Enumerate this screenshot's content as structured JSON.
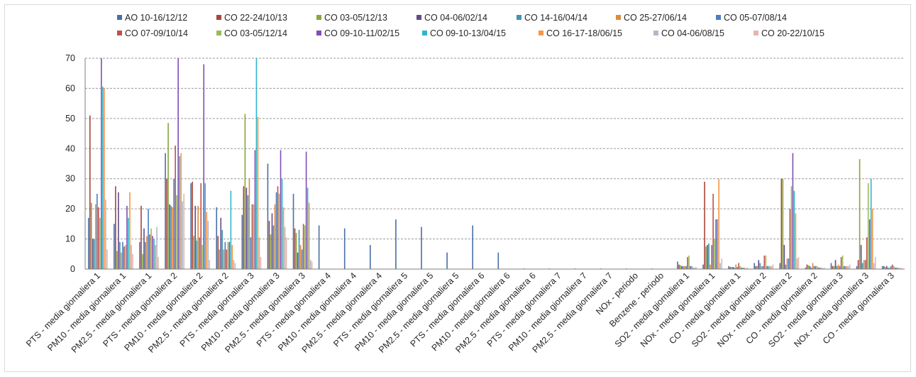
{
  "chart_data": {
    "type": "bar",
    "title": "",
    "xlabel": "",
    "ylabel": "",
    "ylim": [
      0,
      70
    ],
    "yticks": [
      0,
      10,
      20,
      30,
      40,
      50,
      60,
      70
    ],
    "grid": true,
    "legend_position": "top",
    "categories": [
      "PTS - media giornaliera 1",
      "PM10 - media giornaliera 1",
      "PM2.5 - media giornaliera 1",
      "PTS - media giornaliera 2",
      "PM10 - media giornaliera 2",
      "PM2.5 - media giornaliera 2",
      "PTS - media giornaliera 3",
      "PM10 - media giornaliera 3",
      "PM2.5 - media giornaliera 3",
      "PTS - media giornaliera 4",
      "PM10 - media giornaliera 4",
      "PM2.5 - media giornaliera 4",
      "PTS - media giornaliera 5",
      "PM10 - media giornaliera 5",
      "PM2.5 - media giornaliera 5",
      "PTS - media giornaliera 6",
      "PM10 - media giornaliera 6",
      "PM2.5 - media giornaliera 6",
      "PTS - media giornaliera 7",
      "PM10 - media giornaliera 7",
      "PM2.5 - media giornaliera 7",
      "NOx - periodo",
      "Benzene - periodo",
      "SO2 - media giornaliera 1",
      "NOx - media giornaliera 1",
      "CO - media giornaliera 1",
      "SO2 - media giornaliera 2",
      "NOx - media giornaliera 2",
      "CO - media giornaliera 2",
      "SO2 - media giornaliera 3",
      "NOx - media giornaliera 3",
      "CO - media giornaliera 3"
    ],
    "series": [
      {
        "name": "AO 10-16/12/12",
        "color": "#4a6fa5",
        "values": [
          17,
          15,
          9,
          38.5,
          28.5,
          20.5,
          18,
          35,
          25,
          14.5,
          13.5,
          8,
          16.5,
          14,
          5.5,
          14.5,
          5.5,
          0.2,
          0.2,
          0.2,
          0.2,
          0.2,
          0.2,
          2.5,
          1.5,
          1,
          2,
          2,
          0.5,
          2,
          1,
          1
        ]
      },
      {
        "name": "CO 22-24/10/13",
        "color": "#a8463a",
        "values": [
          51,
          27.5,
          21,
          30,
          29,
          11,
          27.5,
          16,
          13.5,
          0,
          0,
          0,
          0,
          0,
          0,
          0,
          0,
          0,
          0,
          0,
          0,
          0,
          0,
          1.5,
          29,
          0.7,
          1,
          30,
          1.5,
          1,
          3,
          1
        ]
      },
      {
        "name": "CO 03-05/12/13",
        "color": "#8ba540",
        "values": [
          22,
          6,
          5,
          48.5,
          11,
          6.5,
          51.5,
          11.5,
          12,
          0,
          0,
          0,
          0,
          0,
          0,
          0,
          0,
          0,
          0,
          0,
          0,
          0,
          0,
          1.3,
          7.5,
          0.7,
          1,
          30,
          1.3,
          1,
          36.5,
          0.7
        ]
      },
      {
        "name": "CO 04-06/02/14",
        "color": "#5f4d8c",
        "values": [
          10,
          25.5,
          13.5,
          21.5,
          21,
          17,
          27,
          18.5,
          5.5,
          0,
          0,
          0,
          0,
          0,
          0,
          0,
          0,
          0,
          0,
          0,
          0,
          0,
          0,
          1,
          8,
          0.7,
          3,
          8,
          1,
          3,
          8,
          1
        ]
      },
      {
        "name": "CO 14-16/04/14",
        "color": "#3d96b0",
        "values": [
          10,
          9,
          9,
          21,
          9.5,
          13,
          24.5,
          14.5,
          13,
          0,
          0,
          0,
          0,
          0,
          0,
          0,
          0,
          0,
          0,
          0,
          0,
          0,
          0,
          1,
          8.5,
          0.5,
          2,
          1.5,
          0.5,
          1,
          2,
          0.5
        ]
      },
      {
        "name": "CO 25-27/06/14",
        "color": "#e08a3c",
        "values": [
          21.5,
          5.5,
          11,
          20.5,
          21,
          6.5,
          30,
          21.5,
          8,
          0,
          0,
          0,
          0,
          0,
          0,
          0,
          0,
          0,
          0,
          0,
          0,
          0,
          0,
          1,
          1.5,
          1.5,
          1,
          3.5,
          2,
          1.5,
          3,
          0.5
        ]
      },
      {
        "name": "CO 05-07/08/14",
        "color": "#4a7fc1",
        "values": [
          25,
          9,
          20,
          30,
          10.5,
          9,
          10.5,
          25.5,
          6.5,
          0,
          0,
          0,
          0,
          0,
          0,
          0,
          0,
          0,
          0,
          0,
          0,
          0,
          0,
          1,
          8,
          0.7,
          1,
          3.5,
          1,
          1,
          3,
          1
        ]
      },
      {
        "name": "CO 07-09/10/14",
        "color": "#c0504d",
        "values": [
          20.5,
          7.5,
          11.5,
          41,
          28.5,
          6.5,
          21.5,
          27.5,
          15,
          0,
          0,
          0,
          0,
          0,
          0,
          0,
          0,
          0,
          0,
          0,
          0,
          0,
          0,
          4,
          25,
          2,
          4.5,
          20,
          1,
          4,
          10.5,
          1.5
        ]
      },
      {
        "name": "CO 03-05/12/14",
        "color": "#9bbb59",
        "values": [
          17,
          8,
          13.5,
          24.5,
          8,
          9,
          21.5,
          25,
          14.5,
          0,
          0,
          0,
          0,
          0,
          0,
          0,
          0,
          0,
          0,
          0,
          0,
          0,
          0,
          4.5,
          10,
          1,
          4.5,
          27.5,
          1,
          4.5,
          28.5,
          1
        ]
      },
      {
        "name": "CO 09-10-11/02/15",
        "color": "#7f4fb5",
        "values": [
          70,
          21,
          11,
          70,
          68,
          9,
          39.5,
          39.5,
          39,
          0,
          0,
          0,
          0,
          0,
          0,
          0,
          0,
          0,
          0,
          0,
          0,
          0,
          0,
          1,
          16.5,
          0.5,
          1,
          38.5,
          0.5,
          1,
          16.5,
          0.5
        ]
      },
      {
        "name": "CO 09-10-13/04/15",
        "color": "#2fb6cc",
        "values": [
          60.5,
          17,
          10,
          37.5,
          28.5,
          26,
          70,
          30,
          27,
          0,
          0,
          0,
          0,
          0,
          0,
          0,
          0,
          0,
          0,
          0,
          0,
          0,
          0,
          1,
          16.5,
          0.5,
          1,
          26,
          0.5,
          1,
          30,
          0.5
        ]
      },
      {
        "name": "CO 16-17-18/06/15",
        "color": "#f79646",
        "values": [
          60,
          25.5,
          8,
          38.5,
          19,
          8,
          50.5,
          20.5,
          22,
          0,
          0,
          0,
          0,
          0,
          0,
          0,
          0,
          0,
          0,
          0,
          0,
          0,
          0,
          0.5,
          30,
          0.5,
          1,
          18.5,
          0.5,
          1,
          20,
          0.5
        ]
      },
      {
        "name": "CO 04-06/08/15",
        "color": "#b0b8c8",
        "values": [
          23,
          8,
          14,
          22.5,
          16,
          3,
          10.5,
          14,
          3,
          0,
          0,
          0,
          0,
          0,
          0,
          0,
          0,
          0,
          0,
          0,
          0,
          0,
          0,
          0.5,
          2,
          0.3,
          1,
          3.5,
          0.3,
          1,
          2,
          0.3
        ]
      },
      {
        "name": "CO 20-22/10/15",
        "color": "#e6b4b0",
        "values": [
          6.5,
          5,
          4,
          25,
          3,
          2,
          4,
          10.5,
          2.5,
          0,
          0,
          0,
          0,
          0,
          0,
          0,
          0,
          0,
          0,
          0,
          0,
          0,
          0,
          0.7,
          3.5,
          0.5,
          1.5,
          4,
          0.5,
          1.5,
          4,
          0.5
        ]
      }
    ]
  }
}
